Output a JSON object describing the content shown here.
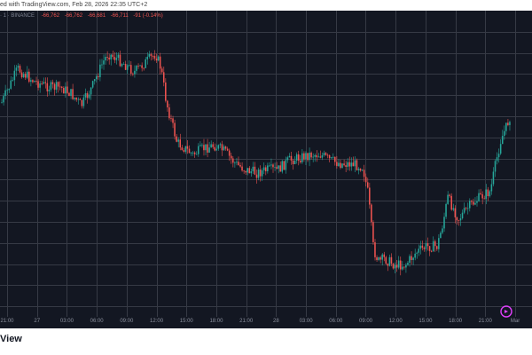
{
  "header": {
    "credit_text": "ed with TradingView.com, Feb 28, 2026 22:35 UTC+2"
  },
  "legend": {
    "symbol": "· 1 · BINANCE",
    "values": [
      "-66,762",
      "-66,762",
      "-66,681",
      "-66,711",
      "-91 (-0.14%)"
    ]
  },
  "footer": {
    "logo_text": "View"
  },
  "colors": {
    "background": "#131722",
    "grid": "#363a45",
    "up": "#26a69a",
    "down": "#ef5350",
    "axis_text": "#8a8f9c"
  },
  "icons": {
    "replay": "replay-icon"
  },
  "chart_data": {
    "type": "candlestick",
    "x_tick_labels": [
      "21:00",
      "27",
      "03:00",
      "06:00",
      "09:00",
      "12:00",
      "15:00",
      "18:00",
      "21:00",
      "28",
      "03:00",
      "06:00",
      "09:00",
      "12:00",
      "15:00",
      "18:00",
      "21:00",
      "Mar"
    ],
    "price_path": [
      [
        0,
        0.3
      ],
      [
        0.03,
        0.19
      ],
      [
        0.06,
        0.23
      ],
      [
        0.09,
        0.25
      ],
      [
        0.11,
        0.25
      ],
      [
        0.13,
        0.27
      ],
      [
        0.15,
        0.31
      ],
      [
        0.17,
        0.25
      ],
      [
        0.19,
        0.17
      ],
      [
        0.2,
        0.14
      ],
      [
        0.22,
        0.16
      ],
      [
        0.25,
        0.2
      ],
      [
        0.27,
        0.17
      ],
      [
        0.29,
        0.14
      ],
      [
        0.3,
        0.19
      ],
      [
        0.31,
        0.3
      ],
      [
        0.33,
        0.43
      ],
      [
        0.36,
        0.47
      ],
      [
        0.38,
        0.45
      ],
      [
        0.4,
        0.44
      ],
      [
        0.42,
        0.46
      ],
      [
        0.44,
        0.5
      ],
      [
        0.46,
        0.52
      ],
      [
        0.48,
        0.53
      ],
      [
        0.5,
        0.52
      ],
      [
        0.52,
        0.52
      ],
      [
        0.54,
        0.49
      ],
      [
        0.56,
        0.48
      ],
      [
        0.58,
        0.47
      ],
      [
        0.6,
        0.47
      ],
      [
        0.62,
        0.49
      ],
      [
        0.64,
        0.5
      ],
      [
        0.66,
        0.5
      ],
      [
        0.68,
        0.51
      ],
      [
        0.69,
        0.6
      ],
      [
        0.7,
        0.78
      ],
      [
        0.71,
        0.82
      ],
      [
        0.72,
        0.81
      ],
      [
        0.74,
        0.83
      ],
      [
        0.76,
        0.83
      ],
      [
        0.78,
        0.79
      ],
      [
        0.8,
        0.77
      ],
      [
        0.82,
        0.77
      ],
      [
        0.83,
        0.7
      ],
      [
        0.84,
        0.61
      ],
      [
        0.86,
        0.68
      ],
      [
        0.88,
        0.64
      ],
      [
        0.9,
        0.61
      ],
      [
        0.92,
        0.59
      ],
      [
        0.93,
        0.5
      ],
      [
        0.94,
        0.42
      ],
      [
        0.95,
        0.38
      ],
      [
        0.96,
        0.33
      ]
    ],
    "y_gridlines": 14,
    "x_gridlines": 18,
    "grid": true,
    "legend_position": "top-left"
  }
}
